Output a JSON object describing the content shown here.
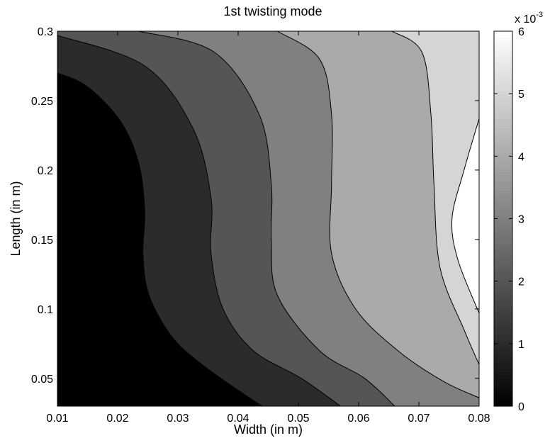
{
  "chart_data": {
    "type": "contour",
    "title": "1st twisting mode",
    "xlabel": "Width (in m)",
    "ylabel": "Length (in m)",
    "xlim": [
      0.01,
      0.08
    ],
    "ylim": [
      0.03,
      0.3
    ],
    "x_ticks": [
      "0.01",
      "0.02",
      "0.03",
      "0.04",
      "0.05",
      "0.06",
      "0.07",
      "0.08"
    ],
    "y_ticks": [
      "0.05",
      "0.1",
      "0.15",
      "0.2",
      "0.25",
      "0.3"
    ],
    "colorbar": {
      "range": [
        0,
        6
      ],
      "ticks": [
        "0",
        "1",
        "2",
        "3",
        "4",
        "5",
        "6"
      ],
      "multiplier_base": "x 10",
      "multiplier_exponent": "-3",
      "colormap": "gray"
    },
    "contour_levels": [
      1,
      2,
      3,
      4,
      5
    ],
    "level_lines": [
      {
        "level": 1,
        "points": [
          [
            0.01,
            0.27
          ],
          [
            0.015,
            0.26
          ],
          [
            0.0205,
            0.235
          ],
          [
            0.0235,
            0.205
          ],
          [
            0.0245,
            0.17
          ],
          [
            0.0242,
            0.14
          ],
          [
            0.0252,
            0.11
          ],
          [
            0.029,
            0.08
          ],
          [
            0.034,
            0.06
          ],
          [
            0.0405,
            0.04
          ],
          [
            0.044,
            0.03
          ]
        ]
      },
      {
        "level": 2,
        "points": [
          [
            0.01,
            0.297
          ],
          [
            0.0245,
            0.275
          ],
          [
            0.0325,
            0.23
          ],
          [
            0.0355,
            0.18
          ],
          [
            0.0355,
            0.14
          ],
          [
            0.0375,
            0.1
          ],
          [
            0.0425,
            0.07
          ],
          [
            0.0505,
            0.05
          ],
          [
            0.057,
            0.03
          ]
        ]
      },
      {
        "level": 3,
        "points": [
          [
            0.0235,
            0.3
          ],
          [
            0.036,
            0.285
          ],
          [
            0.0435,
            0.24
          ],
          [
            0.0455,
            0.19
          ],
          [
            0.0455,
            0.15
          ],
          [
            0.0465,
            0.11
          ],
          [
            0.0535,
            0.07
          ],
          [
            0.061,
            0.05
          ],
          [
            0.066,
            0.03
          ]
        ]
      },
      {
        "level": 4,
        "points": [
          [
            0.0465,
            0.3
          ],
          [
            0.0535,
            0.28
          ],
          [
            0.0555,
            0.24
          ],
          [
            0.0555,
            0.19
          ],
          [
            0.0555,
            0.14
          ],
          [
            0.0595,
            0.1
          ],
          [
            0.0665,
            0.07
          ],
          [
            0.074,
            0.048
          ],
          [
            0.08,
            0.036
          ]
        ]
      },
      {
        "level": 5,
        "points": [
          [
            0.0655,
            0.3
          ],
          [
            0.0705,
            0.285
          ],
          [
            0.072,
            0.24
          ],
          [
            0.0725,
            0.19
          ],
          [
            0.0735,
            0.13
          ],
          [
            0.0775,
            0.085
          ],
          [
            0.08,
            0.06
          ]
        ]
      },
      {
        "level": 6,
        "points": [
          [
            0.08,
            0.237
          ],
          [
            0.0775,
            0.2
          ],
          [
            0.0755,
            0.165
          ],
          [
            0.0765,
            0.135
          ],
          [
            0.08,
            0.097
          ]
        ]
      }
    ]
  }
}
